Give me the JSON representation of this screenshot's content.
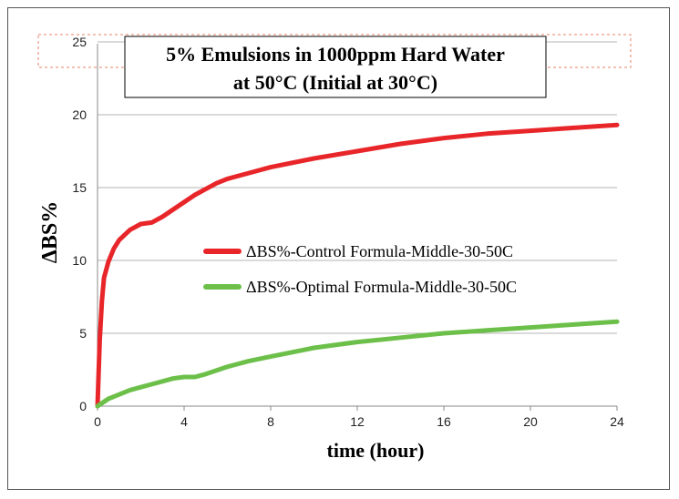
{
  "chart_data": {
    "type": "line",
    "title_lines": [
      "5% Emulsions in 1000ppm Hard Water",
      "at 50°C (Initial at 30°C)"
    ],
    "xlabel": "time (hour)",
    "ylabel": "ΔBS%",
    "xlim": [
      0,
      24
    ],
    "ylim": [
      0,
      25
    ],
    "xticks": [
      0,
      4,
      8,
      12,
      16,
      20,
      24
    ],
    "yticks": [
      0,
      5,
      10,
      15,
      20,
      25
    ],
    "grid": true,
    "legend_position": "center-right",
    "series": [
      {
        "name": "ΔBS%-Control Formula-Middle-30-50C",
        "color": "#e8262a",
        "x": [
          0,
          0.1,
          0.2,
          0.3,
          0.5,
          0.75,
          1,
          1.5,
          2,
          2.5,
          3,
          3.5,
          4,
          4.5,
          5,
          5.5,
          6,
          7,
          8,
          10,
          12,
          14,
          16,
          18,
          20,
          22,
          24
        ],
        "y": [
          0,
          4.5,
          7.2,
          8.8,
          9.9,
          10.8,
          11.4,
          12.1,
          12.5,
          12.6,
          13.0,
          13.5,
          14.0,
          14.5,
          14.9,
          15.3,
          15.6,
          16.0,
          16.4,
          17.0,
          17.5,
          18.0,
          18.4,
          18.7,
          18.9,
          19.1,
          19.3
        ]
      },
      {
        "name": "ΔBS%-Optimal Formula-Middle-30-50C",
        "color": "#6cc04a",
        "x": [
          0,
          0.5,
          1,
          1.5,
          2,
          2.5,
          3,
          3.5,
          4,
          4.5,
          5,
          6,
          7,
          8,
          10,
          12,
          14,
          16,
          18,
          20,
          22,
          24
        ],
        "y": [
          0,
          0.5,
          0.8,
          1.1,
          1.3,
          1.5,
          1.7,
          1.9,
          2.0,
          2.0,
          2.2,
          2.7,
          3.1,
          3.4,
          4.0,
          4.4,
          4.7,
          5.0,
          5.2,
          5.4,
          5.6,
          5.8
        ]
      }
    ]
  }
}
